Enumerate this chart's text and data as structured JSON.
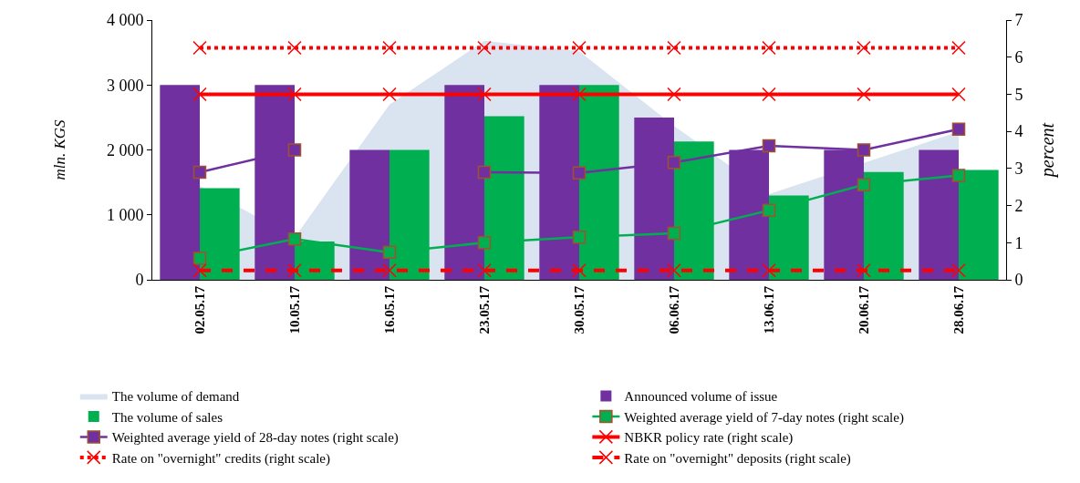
{
  "chart_data": {
    "type": "bar",
    "ylabel": "mln. KGS",
    "y2label": "percent",
    "categories": [
      "02.05.17",
      "10.05.17",
      "16.05.17",
      "23.05.17",
      "30.05.17",
      "06.06.17",
      "13.06.17",
      "20.06.17",
      "28.06.17"
    ],
    "series": [
      {
        "name": "The volume of demand",
        "type": "area",
        "color": "#dae3f0",
        "values": [
          1450,
          650,
          2700,
          3680,
          3520,
          2370,
          1320,
          1800,
          2280
        ]
      },
      {
        "name": "Announced volume of issue",
        "color": "#7030a0",
        "values": [
          3000,
          3000,
          2000,
          3000,
          3000,
          2500,
          2000,
          2000,
          2000
        ]
      },
      {
        "name": "The volume of sales",
        "color": "#00b050",
        "values": [
          1410,
          590,
          2000,
          2520,
          3000,
          2130,
          1300,
          1660,
          1690
        ]
      },
      {
        "name": "Weighted average yield of 7-day notes (right scale)",
        "type": "line",
        "axis": "y2",
        "color": "#00b050",
        "marker": "square",
        "line_style": "solid",
        "values": [
          0.58,
          1.1,
          0.74,
          1.0,
          1.15,
          1.25,
          1.87,
          2.56,
          2.81
        ]
      },
      {
        "name": "Weighted average yield of 28-day notes (right scale)",
        "type": "line",
        "axis": "y2",
        "color": "#7030a0",
        "marker": "square",
        "line_style": "solid",
        "values": [
          2.9,
          3.5,
          null,
          2.9,
          2.88,
          3.16,
          3.61,
          3.5,
          4.06
        ]
      },
      {
        "name": "NBKR policy rate (right scale)",
        "type": "line",
        "axis": "y2",
        "color": "#ff0000",
        "marker": "cross",
        "line_style": "solid",
        "values": [
          5,
          5,
          5,
          5,
          5,
          5,
          5,
          5,
          5
        ]
      },
      {
        "name": "Rate on \"overnight\" credits (right scale)",
        "type": "line",
        "axis": "y2",
        "color": "#ff0000",
        "marker": "cross",
        "line_style": "dotted",
        "values": [
          6.25,
          6.25,
          6.25,
          6.25,
          6.25,
          6.25,
          6.25,
          6.25,
          6.25
        ]
      },
      {
        "name": "Rate on \"overnight\" deposits (right scale)",
        "type": "line",
        "axis": "y2",
        "color": "#ff0000",
        "marker": "cross",
        "line_style": "dashed",
        "values": [
          0.25,
          0.25,
          0.25,
          0.25,
          0.25,
          0.25,
          0.25,
          0.25,
          0.25
        ]
      }
    ],
    "ylim": [
      0,
      4000
    ],
    "yticks": [
      0,
      {
        "value": 1000,
        "label": "1 000"
      },
      {
        "value": 2000,
        "label": "2 000"
      },
      {
        "value": 3000,
        "label": "3 000"
      },
      {
        "value": 4000,
        "label": "4 000"
      }
    ],
    "y2lim": [
      0,
      7
    ],
    "y2ticks": [
      0,
      1,
      2,
      3,
      4,
      5,
      6,
      7
    ],
    "legend": "bottom"
  }
}
